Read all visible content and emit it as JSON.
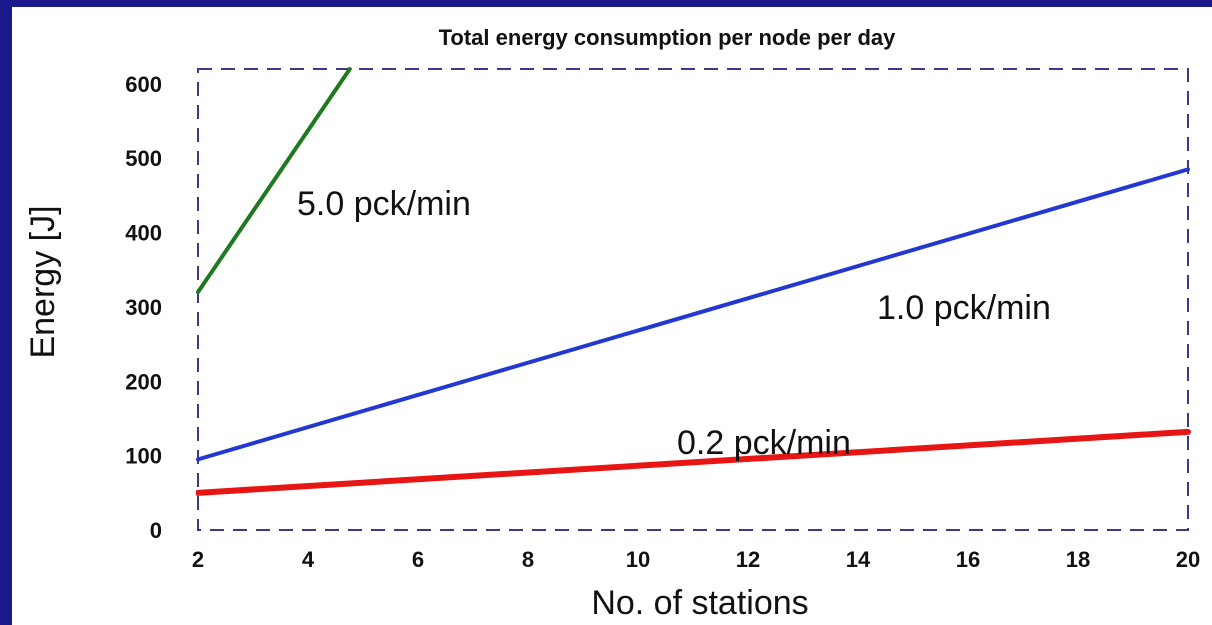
{
  "chart_data": {
    "type": "line",
    "title": "Total energy consumption per node per day",
    "xlabel": "No. of stations",
    "ylabel": "Energy [J]",
    "xlim": [
      2,
      20
    ],
    "ylim": [
      0,
      600
    ],
    "x_ticks": [
      2,
      4,
      6,
      8,
      10,
      12,
      14,
      16,
      18,
      20
    ],
    "y_ticks": [
      0,
      100,
      200,
      300,
      400,
      500,
      600
    ],
    "grid": false,
    "series": [
      {
        "name": "5.0 pck/min",
        "color": "#1f7a1f",
        "x": [
          2,
          4.76
        ],
        "y": [
          320,
          620
        ]
      },
      {
        "name": "1.0 pck/min",
        "color": "#2238d0",
        "x": [
          2,
          20
        ],
        "y": [
          95,
          485
        ]
      },
      {
        "name": "0.2 pck/min",
        "color": "#e81515",
        "x": [
          2,
          20
        ],
        "y": [
          50,
          132
        ]
      }
    ]
  }
}
